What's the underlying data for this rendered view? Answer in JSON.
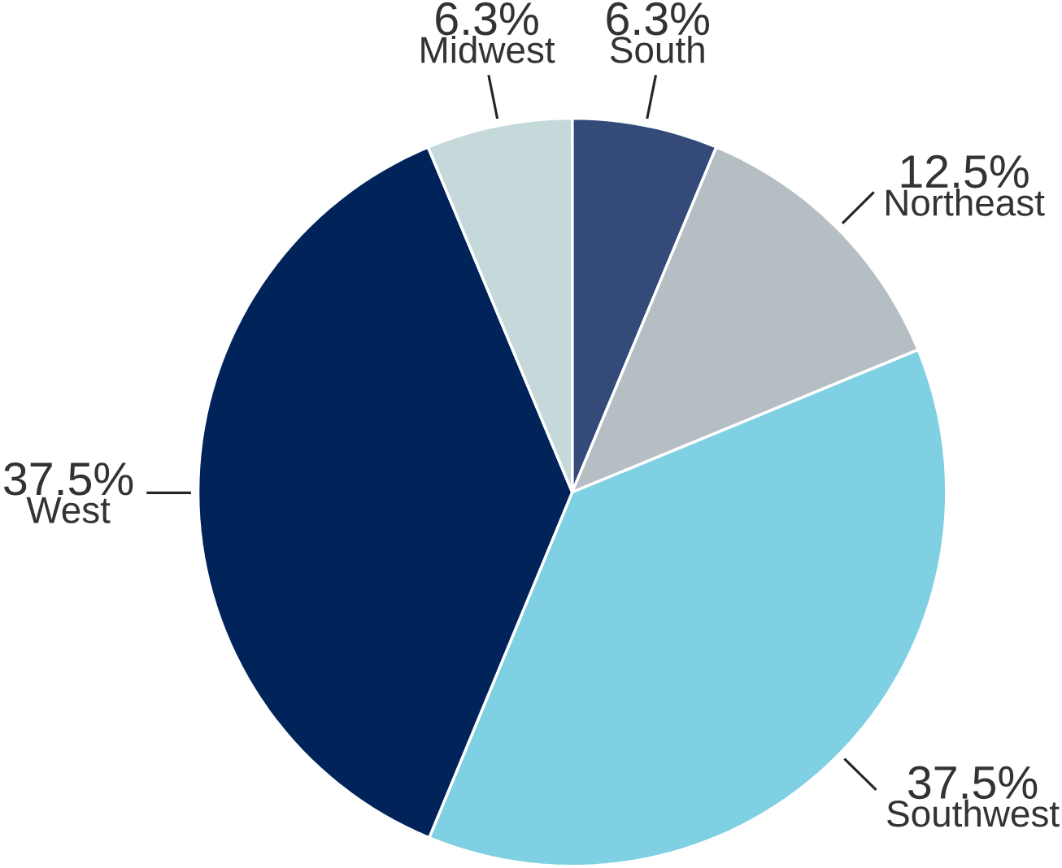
{
  "chart_data": {
    "type": "pie",
    "categories": [
      "South",
      "Northeast",
      "Southwest",
      "West",
      "Midwest"
    ],
    "values": [
      6.3,
      12.5,
      37.5,
      37.5,
      6.3
    ],
    "value_labels": [
      "6.3%",
      "12.5%",
      "37.5%",
      "37.5%",
      "6.3%"
    ],
    "colors": [
      "#344b7a",
      "#b5bec3",
      "#7fd0e3",
      "#00235a",
      "#c5d8da"
    ]
  }
}
